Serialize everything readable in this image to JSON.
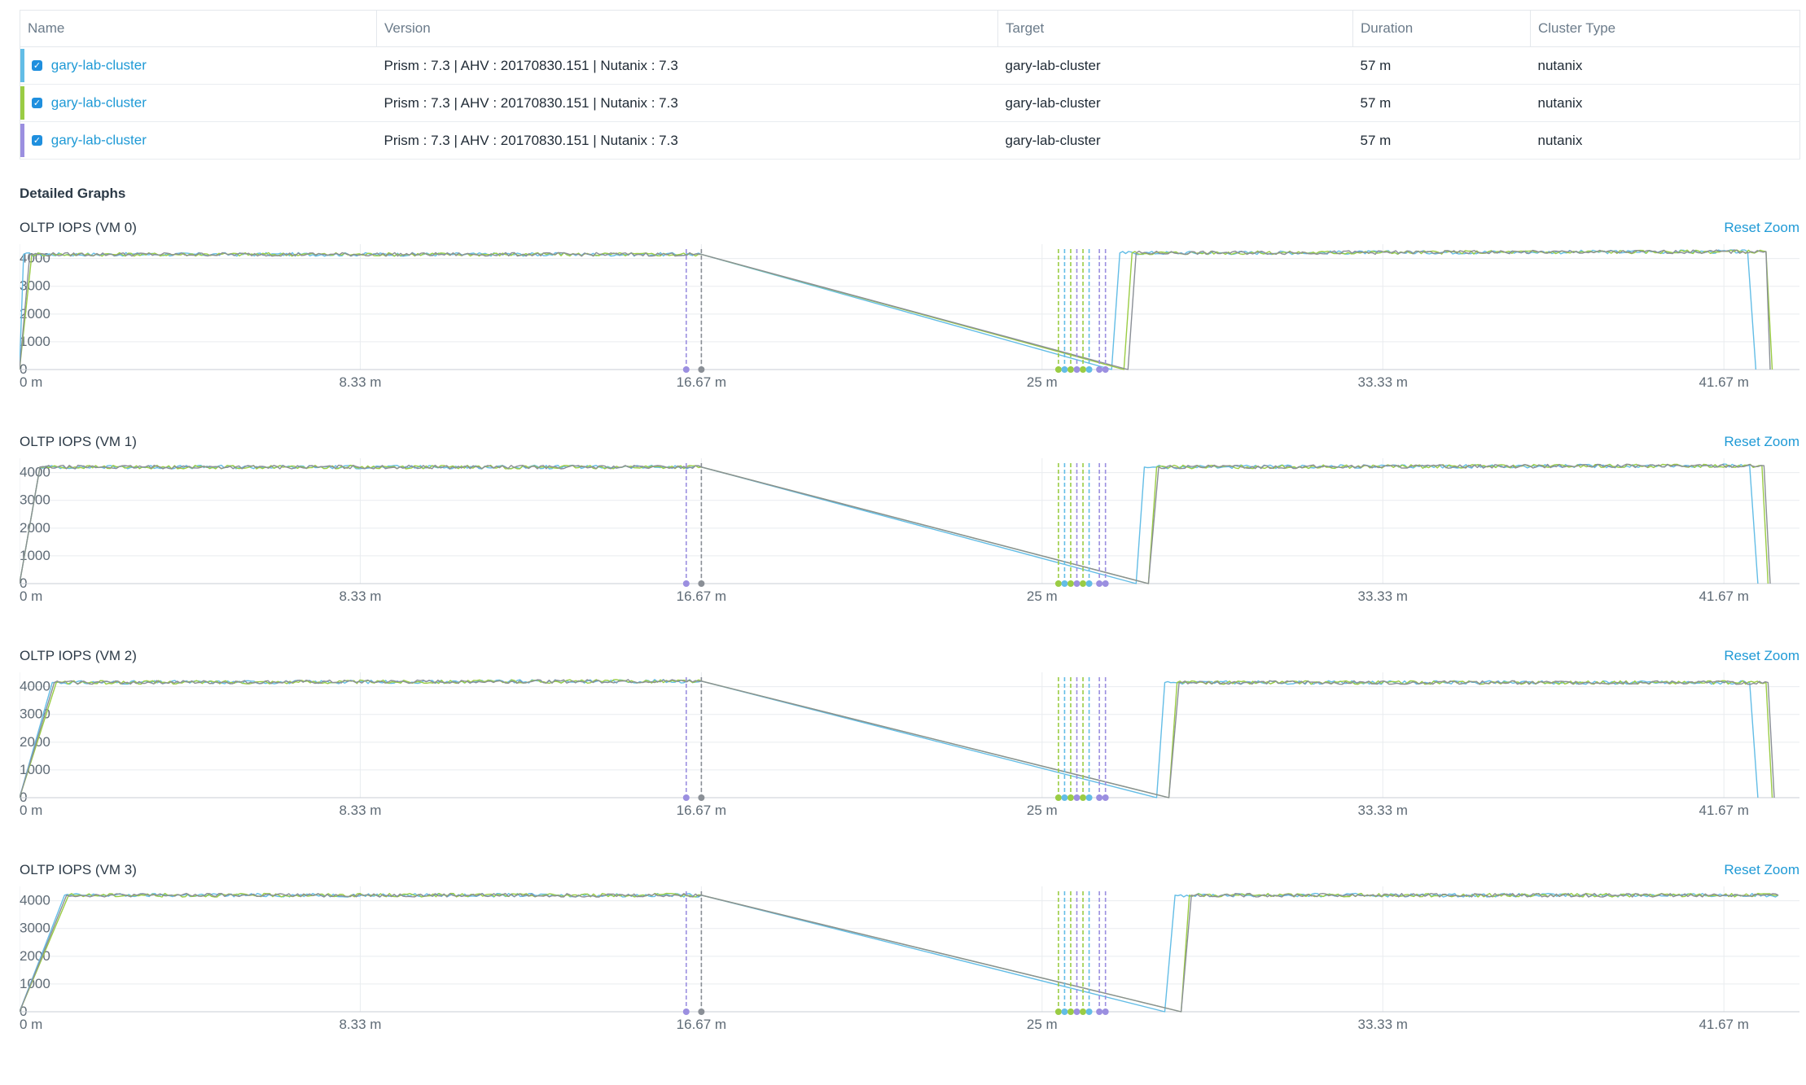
{
  "table": {
    "headers": [
      "Name",
      "Version",
      "Target",
      "Duration",
      "Cluster Type"
    ],
    "rows": [
      {
        "color": "#63bde6",
        "name": "gary-lab-cluster",
        "version": "Prism : 7.3 |  AHV : 20170830.151 |  Nutanix : 7.3",
        "target": "gary-lab-cluster",
        "duration": "57 m",
        "cluster_type": "nutanix"
      },
      {
        "color": "#9acc44",
        "name": "gary-lab-cluster",
        "version": "Prism : 7.3 |  AHV : 20170830.151 |  Nutanix : 7.3",
        "target": "gary-lab-cluster",
        "duration": "57 m",
        "cluster_type": "nutanix"
      },
      {
        "color": "#9b8fe0",
        "name": "gary-lab-cluster",
        "version": "Prism : 7.3 |  AHV : 20170830.151 |  Nutanix : 7.3",
        "target": "gary-lab-cluster",
        "duration": "57 m",
        "cluster_type": "nutanix"
      }
    ]
  },
  "section_title": "Detailed Graphs",
  "reset_zoom_label": "Reset Zoom",
  "colors": {
    "series1": "#63bde6",
    "series2": "#9acc44",
    "series3": "#9b8fe0",
    "series_gray": "#8a8f96",
    "link": "#1f9ad6",
    "grid": "#e9ecef"
  },
  "chart_data": [
    {
      "type": "line",
      "title": "OLTP IOPS (VM 0)",
      "xlim": [
        0,
        43
      ],
      "ylim": [
        0,
        4400
      ],
      "xticks": [
        0,
        8.33,
        16.67,
        25,
        33.33,
        41.67
      ],
      "xtick_labels": [
        "0 m",
        "8.33 m",
        "16.67 m",
        "25 m",
        "33.33 m",
        "41.67 m"
      ],
      "yticks": [
        0,
        1000,
        2000,
        3000,
        4000
      ],
      "ytick_labels": [
        "0",
        "1000",
        "2000",
        "3000",
        "4000"
      ],
      "markers": [
        {
          "x": 16.3,
          "color": "#9b8fe0"
        },
        {
          "x": 16.67,
          "color": "#8a8f96"
        },
        {
          "x": 25.4,
          "color": "#9acc44"
        },
        {
          "x": 25.55,
          "color": "#63bde6"
        },
        {
          "x": 25.7,
          "color": "#9acc44"
        },
        {
          "x": 25.85,
          "color": "#9b8fe0"
        },
        {
          "x": 26.0,
          "color": "#9acc44"
        },
        {
          "x": 26.15,
          "color": "#63bde6"
        },
        {
          "x": 26.4,
          "color": "#9b8fe0"
        },
        {
          "x": 26.55,
          "color": "#9b8fe0"
        }
      ],
      "series": [
        {
          "color": "#63bde6",
          "segments": [
            [
              0,
              0.1
            ],
            [
              0.1,
              4150
            ],
            [
              16.67,
              4150
            ],
            [
              26.7,
              0
            ],
            [
              26.9,
              4200
            ],
            [
              42.25,
              4250
            ],
            [
              42.45,
              0
            ]
          ]
        },
        {
          "color": "#9acc44",
          "segments": [
            [
              0,
              0.3
            ],
            [
              0.3,
              4150
            ],
            [
              16.67,
              4150
            ],
            [
              27.0,
              0
            ],
            [
              27.2,
              4200
            ],
            [
              42.7,
              4250
            ],
            [
              42.85,
              0
            ]
          ]
        },
        {
          "color": "#8a8f96",
          "segments": [
            [
              0,
              0.25
            ],
            [
              0.25,
              4150
            ],
            [
              16.67,
              4150
            ],
            [
              27.1,
              0
            ],
            [
              27.3,
              4200
            ],
            [
              42.7,
              4250
            ],
            [
              42.8,
              0
            ]
          ]
        }
      ]
    },
    {
      "type": "line",
      "title": "OLTP IOPS (VM 1)",
      "xlim": [
        0,
        43
      ],
      "ylim": [
        0,
        4400
      ],
      "xticks": [
        0,
        8.33,
        16.67,
        25,
        33.33,
        41.67
      ],
      "xtick_labels": [
        "0 m",
        "8.33 m",
        "16.67 m",
        "25 m",
        "33.33 m",
        "41.67 m"
      ],
      "yticks": [
        0,
        1000,
        2000,
        3000,
        4000
      ],
      "ytick_labels": [
        "0",
        "1000",
        "2000",
        "3000",
        "4000"
      ],
      "markers": [
        {
          "x": 16.3,
          "color": "#9b8fe0"
        },
        {
          "x": 16.67,
          "color": "#8a8f96"
        },
        {
          "x": 25.4,
          "color": "#9acc44"
        },
        {
          "x": 25.55,
          "color": "#63bde6"
        },
        {
          "x": 25.7,
          "color": "#9acc44"
        },
        {
          "x": 25.85,
          "color": "#9b8fe0"
        },
        {
          "x": 26.0,
          "color": "#9acc44"
        },
        {
          "x": 26.15,
          "color": "#63bde6"
        },
        {
          "x": 26.4,
          "color": "#9b8fe0"
        },
        {
          "x": 26.55,
          "color": "#9b8fe0"
        }
      ],
      "series": [
        {
          "color": "#63bde6",
          "segments": [
            [
              0,
              0.5
            ],
            [
              0.5,
              4200
            ],
            [
              16.67,
              4200
            ],
            [
              27.3,
              0
            ],
            [
              27.5,
              4200
            ],
            [
              42.3,
              4250
            ],
            [
              42.5,
              0
            ]
          ]
        },
        {
          "color": "#9acc44",
          "segments": [
            [
              0,
              0.5
            ],
            [
              0.5,
              4200
            ],
            [
              16.67,
              4200
            ],
            [
              27.6,
              0
            ],
            [
              27.8,
              4200
            ],
            [
              42.6,
              4250
            ],
            [
              42.75,
              0
            ]
          ]
        },
        {
          "color": "#8a8f96",
          "segments": [
            [
              0,
              0.5
            ],
            [
              0.5,
              4200
            ],
            [
              16.67,
              4200
            ],
            [
              27.6,
              0
            ],
            [
              27.85,
              4200
            ],
            [
              42.65,
              4250
            ],
            [
              42.8,
              0
            ]
          ]
        }
      ]
    },
    {
      "type": "line",
      "title": "OLTP IOPS (VM 2)",
      "xlim": [
        0,
        43
      ],
      "ylim": [
        0,
        4400
      ],
      "xticks": [
        0,
        8.33,
        16.67,
        25,
        33.33,
        41.67
      ],
      "xtick_labels": [
        "0 m",
        "8.33 m",
        "16.67 m",
        "25 m",
        "33.33 m",
        "41.67 m"
      ],
      "yticks": [
        0,
        1000,
        2000,
        3000,
        4000
      ],
      "ytick_labels": [
        "0",
        "1000",
        "2000",
        "3000",
        "4000"
      ],
      "markers": [
        {
          "x": 16.3,
          "color": "#9b8fe0"
        },
        {
          "x": 16.67,
          "color": "#8a8f96"
        },
        {
          "x": 25.4,
          "color": "#9acc44"
        },
        {
          "x": 25.55,
          "color": "#63bde6"
        },
        {
          "x": 25.7,
          "color": "#9acc44"
        },
        {
          "x": 25.85,
          "color": "#9b8fe0"
        },
        {
          "x": 26.0,
          "color": "#9acc44"
        },
        {
          "x": 26.15,
          "color": "#63bde6"
        },
        {
          "x": 26.4,
          "color": "#9b8fe0"
        },
        {
          "x": 26.55,
          "color": "#9b8fe0"
        }
      ],
      "series": [
        {
          "color": "#63bde6",
          "segments": [
            [
              0,
              0.8
            ],
            [
              0.8,
              4150
            ],
            [
              16.67,
              4200
            ],
            [
              27.8,
              0
            ],
            [
              28.0,
              4150
            ],
            [
              42.3,
              4150
            ],
            [
              42.5,
              0
            ]
          ]
        },
        {
          "color": "#9acc44",
          "segments": [
            [
              0,
              0.9
            ],
            [
              0.9,
              4150
            ],
            [
              16.67,
              4200
            ],
            [
              28.1,
              0
            ],
            [
              28.3,
              4150
            ],
            [
              42.7,
              4150
            ],
            [
              42.85,
              0
            ]
          ]
        },
        {
          "color": "#8a8f96",
          "segments": [
            [
              0,
              0.85
            ],
            [
              0.85,
              4150
            ],
            [
              16.67,
              4200
            ],
            [
              28.1,
              0
            ],
            [
              28.35,
              4150
            ],
            [
              42.75,
              4150
            ],
            [
              42.9,
              0
            ]
          ]
        }
      ]
    },
    {
      "type": "line",
      "title": "OLTP IOPS (VM 3)",
      "xlim": [
        0,
        43
      ],
      "ylim": [
        0,
        4400
      ],
      "xticks": [
        0,
        8.33,
        16.67,
        25,
        33.33,
        41.67
      ],
      "xtick_labels": [
        "0 m",
        "8.33 m",
        "16.67 m",
        "25 m",
        "33.33 m",
        "41.67 m"
      ],
      "yticks": [
        0,
        1000,
        2000,
        3000,
        4000
      ],
      "ytick_labels": [
        "0",
        "1000",
        "2000",
        "3000",
        "4000"
      ],
      "markers": [
        {
          "x": 16.3,
          "color": "#9b8fe0"
        },
        {
          "x": 16.67,
          "color": "#8a8f96"
        },
        {
          "x": 25.4,
          "color": "#9acc44"
        },
        {
          "x": 25.55,
          "color": "#63bde6"
        },
        {
          "x": 25.7,
          "color": "#9acc44"
        },
        {
          "x": 25.85,
          "color": "#9b8fe0"
        },
        {
          "x": 26.0,
          "color": "#9acc44"
        },
        {
          "x": 26.15,
          "color": "#63bde6"
        },
        {
          "x": 26.4,
          "color": "#9b8fe0"
        },
        {
          "x": 26.55,
          "color": "#9b8fe0"
        }
      ],
      "series": [
        {
          "color": "#63bde6",
          "segments": [
            [
              0,
              1.1
            ],
            [
              1.1,
              4200
            ],
            [
              16.67,
              4200
            ],
            [
              28.0,
              0
            ],
            [
              28.25,
              4200
            ],
            [
              43.0,
              4200
            ]
          ]
        },
        {
          "color": "#9acc44",
          "segments": [
            [
              0,
              1.2
            ],
            [
              1.2,
              4200
            ],
            [
              16.67,
              4200
            ],
            [
              28.4,
              0
            ],
            [
              28.6,
              4200
            ],
            [
              43.0,
              4200
            ]
          ]
        },
        {
          "color": "#8a8f96",
          "segments": [
            [
              0,
              1.15
            ],
            [
              1.15,
              4200
            ],
            [
              16.67,
              4200
            ],
            [
              28.4,
              0
            ],
            [
              28.65,
              4200
            ],
            [
              43.0,
              4200
            ]
          ]
        }
      ]
    }
  ]
}
